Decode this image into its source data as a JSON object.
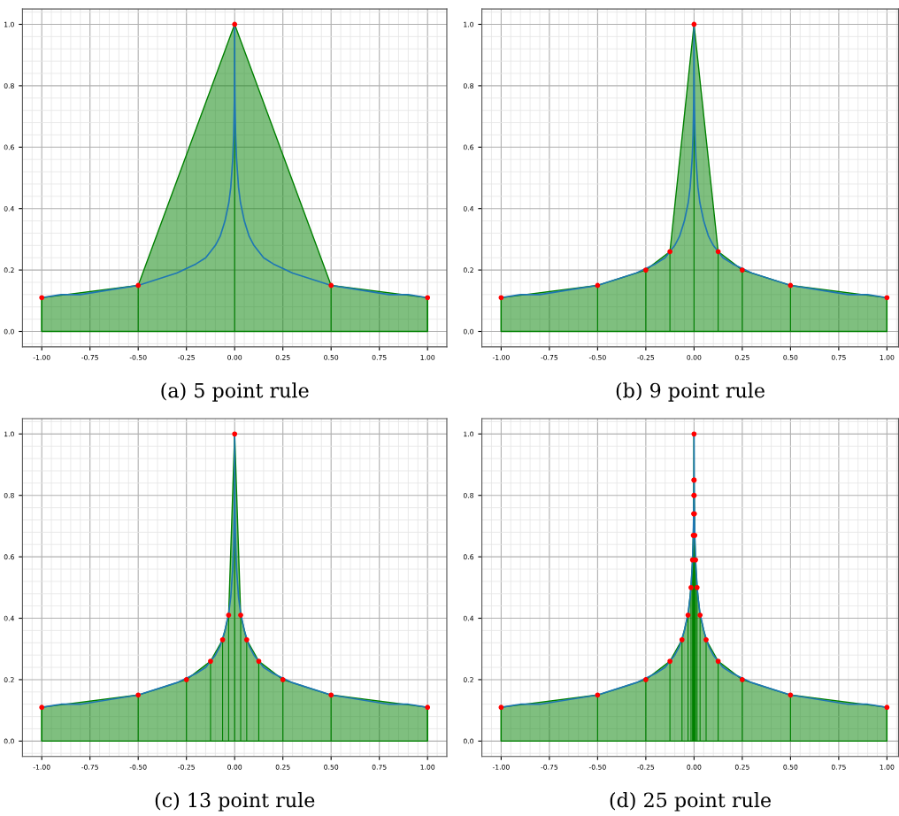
{
  "chart_data": [
    {
      "type": "area",
      "title": "(a) 5 point rule",
      "xlim": [
        -1.1,
        1.1
      ],
      "ylim": [
        -0.05,
        1.05
      ],
      "xticks": [
        {
          "value": -1,
          "label": "-1.00"
        },
        {
          "value": -0.75,
          "label": "-0.75"
        },
        {
          "value": -0.5,
          "label": "-0.50"
        },
        {
          "value": -0.25,
          "label": "-0.25"
        },
        {
          "value": 0,
          "label": "0.00"
        },
        {
          "value": 0.25,
          "label": "0.25"
        },
        {
          "value": 0.5,
          "label": "0.50"
        },
        {
          "value": 0.75,
          "label": "0.75"
        },
        {
          "value": 1,
          "label": "1.00"
        }
      ],
      "yticks": [
        {
          "value": 0,
          "label": "0.0"
        },
        {
          "value": 0.2,
          "label": "0.2"
        },
        {
          "value": 0.4,
          "label": "0.4"
        },
        {
          "value": 0.6,
          "label": "0.6"
        },
        {
          "value": 0.8,
          "label": "0.8"
        },
        {
          "value": 1,
          "label": "1.0"
        }
      ],
      "grid": true,
      "series": [
        {
          "color": "#008000",
          "x": [
            -1,
            -0.5,
            0,
            0.5,
            1
          ],
          "values": [
            0.11,
            0.15,
            1.0,
            0.15,
            0.11
          ]
        },
        {
          "type": "line",
          "color": "#1f77b4",
          "x": [
            -1,
            -0.9,
            -0.8,
            -0.7,
            -0.6,
            -0.5,
            -0.4,
            -0.3,
            -0.2,
            -0.15,
            -0.1,
            -0.075,
            -0.05,
            -0.03,
            -0.02,
            -0.01,
            -0.005,
            -0.002,
            -0.001,
            -0.0005,
            0,
            0.0005,
            0.001,
            0.002,
            0.005,
            0.01,
            0.02,
            0.03,
            0.05,
            0.075,
            0.1,
            0.15,
            0.2,
            0.3,
            0.4,
            0.5,
            0.6,
            0.7,
            0.8,
            0.9,
            1
          ],
          "values": [
            0.11,
            0.12,
            0.12,
            0.13,
            0.14,
            0.15,
            0.17,
            0.19,
            0.22,
            0.24,
            0.28,
            0.31,
            0.36,
            0.42,
            0.47,
            0.56,
            0.64,
            0.74,
            0.8,
            0.85,
            1.0,
            0.85,
            0.8,
            0.74,
            0.64,
            0.56,
            0.47,
            0.42,
            0.36,
            0.31,
            0.28,
            0.24,
            0.22,
            0.19,
            0.17,
            0.15,
            0.14,
            0.13,
            0.12,
            0.12,
            0.11
          ]
        },
        {
          "type": "lollipop",
          "color": "#008000",
          "colors": [
            "#ff0000",
            "#ff0000",
            "#ff0000",
            "#ff0000",
            "#ff0000"
          ],
          "marker": "circle",
          "x": [
            -1,
            -0.5,
            0,
            0.5,
            1
          ],
          "values": [
            0.11,
            0.15,
            1.0,
            0.15,
            0.11
          ]
        }
      ]
    },
    {
      "type": "area",
      "title": "(b) 9 point rule",
      "xlim": [
        -1.1,
        1.06
      ],
      "ylim": [
        -0.05,
        1.05
      ],
      "xticks": [
        {
          "value": -1,
          "label": "-1.00"
        },
        {
          "value": -0.75,
          "label": "-0.75"
        },
        {
          "value": -0.5,
          "label": "-0.50"
        },
        {
          "value": -0.25,
          "label": "-0.25"
        },
        {
          "value": 0,
          "label": "0.00"
        },
        {
          "value": 0.25,
          "label": "0.25"
        },
        {
          "value": 0.5,
          "label": "0.50"
        },
        {
          "value": 0.75,
          "label": "0.75"
        },
        {
          "value": 1,
          "label": "1.00"
        }
      ],
      "yticks": [
        {
          "value": 0,
          "label": "0.0"
        },
        {
          "value": 0.2,
          "label": "0.2"
        },
        {
          "value": 0.4,
          "label": "0.4"
        },
        {
          "value": 0.6,
          "label": "0.6"
        },
        {
          "value": 0.8,
          "label": "0.8"
        },
        {
          "value": 1,
          "label": "1.0"
        }
      ],
      "grid": true,
      "series": [
        {
          "color": "#008000",
          "x": [
            -1,
            -0.5,
            -0.25,
            -0.125,
            0,
            0.125,
            0.25,
            0.5,
            1
          ],
          "values": [
            0.11,
            0.15,
            0.2,
            0.26,
            1.0,
            0.26,
            0.2,
            0.15,
            0.11
          ]
        },
        {
          "type": "line",
          "color": "#1f77b4",
          "x": [
            -1,
            -0.9,
            -0.8,
            -0.7,
            -0.6,
            -0.5,
            -0.4,
            -0.3,
            -0.2,
            -0.15,
            -0.1,
            -0.075,
            -0.05,
            -0.03,
            -0.02,
            -0.01,
            -0.005,
            -0.002,
            -0.001,
            -0.0005,
            0,
            0.0005,
            0.001,
            0.002,
            0.005,
            0.01,
            0.02,
            0.03,
            0.05,
            0.075,
            0.1,
            0.15,
            0.2,
            0.3,
            0.4,
            0.5,
            0.6,
            0.7,
            0.8,
            0.9,
            1
          ],
          "values": [
            0.11,
            0.12,
            0.12,
            0.13,
            0.14,
            0.15,
            0.17,
            0.19,
            0.22,
            0.24,
            0.28,
            0.31,
            0.36,
            0.42,
            0.47,
            0.56,
            0.64,
            0.74,
            0.8,
            0.85,
            1.0,
            0.85,
            0.8,
            0.74,
            0.64,
            0.56,
            0.47,
            0.42,
            0.36,
            0.31,
            0.28,
            0.24,
            0.22,
            0.19,
            0.17,
            0.15,
            0.14,
            0.13,
            0.12,
            0.12,
            0.11
          ]
        },
        {
          "type": "lollipop",
          "color": "#008000",
          "colors": [
            "#ff0000",
            "#ff0000",
            "#ff0000",
            "#ff0000",
            "#ff0000",
            "#ff0000",
            "#ff0000",
            "#ff0000",
            "#ff0000"
          ],
          "marker": "circle",
          "x": [
            -1,
            -0.5,
            -0.25,
            -0.125,
            0,
            0.125,
            0.25,
            0.5,
            1
          ],
          "values": [
            0.11,
            0.15,
            0.2,
            0.26,
            1.0,
            0.26,
            0.2,
            0.15,
            0.11
          ]
        }
      ]
    },
    {
      "type": "area",
      "title": "(c) 13 point rule",
      "xlim": [
        -1.1,
        1.1
      ],
      "ylim": [
        -0.05,
        1.05
      ],
      "xticks": [
        {
          "value": -1,
          "label": "-1.00"
        },
        {
          "value": -0.75,
          "label": "-0.75"
        },
        {
          "value": -0.5,
          "label": "-0.50"
        },
        {
          "value": -0.25,
          "label": "-0.25"
        },
        {
          "value": 0,
          "label": "0.00"
        },
        {
          "value": 0.25,
          "label": "0.25"
        },
        {
          "value": 0.5,
          "label": "0.50"
        },
        {
          "value": 0.75,
          "label": "0.75"
        },
        {
          "value": 1,
          "label": "1.00"
        }
      ],
      "yticks": [
        {
          "value": 0,
          "label": "0.0"
        },
        {
          "value": 0.2,
          "label": "0.2"
        },
        {
          "value": 0.4,
          "label": "0.4"
        },
        {
          "value": 0.6,
          "label": "0.6"
        },
        {
          "value": 0.8,
          "label": "0.8"
        },
        {
          "value": 1,
          "label": "1.0"
        }
      ],
      "grid": true,
      "series": [
        {
          "color": "#008000",
          "x": [
            -1,
            -0.5,
            -0.25,
            -0.125,
            -0.0625,
            -0.03125,
            0,
            0.03125,
            0.0625,
            0.125,
            0.25,
            0.5,
            1
          ],
          "values": [
            0.11,
            0.15,
            0.2,
            0.26,
            0.33,
            0.41,
            1.0,
            0.41,
            0.33,
            0.26,
            0.2,
            0.15,
            0.11
          ]
        },
        {
          "type": "line",
          "color": "#1f77b4",
          "x": [
            -1,
            -0.9,
            -0.8,
            -0.7,
            -0.6,
            -0.5,
            -0.4,
            -0.3,
            -0.2,
            -0.15,
            -0.1,
            -0.075,
            -0.05,
            -0.03,
            -0.02,
            -0.01,
            -0.005,
            -0.002,
            -0.001,
            -0.0005,
            0,
            0.0005,
            0.001,
            0.002,
            0.005,
            0.01,
            0.02,
            0.03,
            0.05,
            0.075,
            0.1,
            0.15,
            0.2,
            0.3,
            0.4,
            0.5,
            0.6,
            0.7,
            0.8,
            0.9,
            1
          ],
          "values": [
            0.11,
            0.12,
            0.12,
            0.13,
            0.14,
            0.15,
            0.17,
            0.19,
            0.22,
            0.24,
            0.28,
            0.31,
            0.36,
            0.42,
            0.47,
            0.56,
            0.64,
            0.74,
            0.8,
            0.85,
            1.0,
            0.85,
            0.8,
            0.74,
            0.64,
            0.56,
            0.47,
            0.42,
            0.36,
            0.31,
            0.28,
            0.24,
            0.22,
            0.19,
            0.17,
            0.15,
            0.14,
            0.13,
            0.12,
            0.12,
            0.11
          ]
        },
        {
          "type": "lollipop",
          "color": "#008000",
          "colors": [
            "#ff0000",
            "#ff0000",
            "#ff0000",
            "#ff0000",
            "#ff0000",
            "#ff0000",
            "#ff0000",
            "#ff0000",
            "#ff0000",
            "#ff0000",
            "#ff0000",
            "#ff0000",
            "#ff0000"
          ],
          "marker": "circle",
          "x": [
            -1,
            -0.5,
            -0.25,
            -0.125,
            -0.0625,
            -0.03125,
            0,
            0.03125,
            0.0625,
            0.125,
            0.25,
            0.5,
            1
          ],
          "values": [
            0.11,
            0.15,
            0.2,
            0.26,
            0.33,
            0.41,
            1.0,
            0.41,
            0.33,
            0.26,
            0.2,
            0.15,
            0.11
          ]
        }
      ]
    },
    {
      "type": "area",
      "title": "(d) 25 point rule",
      "xlim": [
        -1.1,
        1.06
      ],
      "ylim": [
        -0.05,
        1.05
      ],
      "xticks": [
        {
          "value": -1,
          "label": "-1.00"
        },
        {
          "value": -0.75,
          "label": "-0.75"
        },
        {
          "value": -0.5,
          "label": "-0.50"
        },
        {
          "value": -0.25,
          "label": "-0.25"
        },
        {
          "value": 0,
          "label": "0.00"
        },
        {
          "value": 0.25,
          "label": "0.25"
        },
        {
          "value": 0.5,
          "label": "0.50"
        },
        {
          "value": 0.75,
          "label": "0.75"
        },
        {
          "value": 1,
          "label": "1.00"
        }
      ],
      "yticks": [
        {
          "value": 0,
          "label": "0.0"
        },
        {
          "value": 0.2,
          "label": "0.2"
        },
        {
          "value": 0.4,
          "label": "0.4"
        },
        {
          "value": 0.6,
          "label": "0.6"
        },
        {
          "value": 0.8,
          "label": "0.8"
        },
        {
          "value": 1,
          "label": "1.0"
        }
      ],
      "grid": true,
      "series": [
        {
          "color": "#008000",
          "x": [
            -1,
            -0.5,
            -0.25,
            -0.125,
            -0.0625,
            -0.03125,
            -0.015625,
            -0.0078125,
            -0.00390625,
            -0.001953125,
            -0.0009765625,
            -0.00048828125,
            0,
            0.00048828125,
            0.0009765625,
            0.001953125,
            0.00390625,
            0.0078125,
            0.015625,
            0.03125,
            0.0625,
            0.125,
            0.25,
            0.5,
            1
          ],
          "values": [
            0.11,
            0.15,
            0.2,
            0.26,
            0.33,
            0.41,
            0.5,
            0.59,
            0.67,
            0.74,
            0.8,
            0.85,
            1.0,
            0.85,
            0.8,
            0.74,
            0.67,
            0.59,
            0.5,
            0.41,
            0.33,
            0.26,
            0.2,
            0.15,
            0.11
          ]
        },
        {
          "type": "line",
          "color": "#1f77b4",
          "x": [
            -1,
            -0.9,
            -0.8,
            -0.7,
            -0.6,
            -0.5,
            -0.4,
            -0.3,
            -0.2,
            -0.15,
            -0.1,
            -0.075,
            -0.05,
            -0.03,
            -0.02,
            -0.01,
            -0.005,
            -0.002,
            -0.001,
            -0.0005,
            0,
            0.0005,
            0.001,
            0.002,
            0.005,
            0.01,
            0.02,
            0.03,
            0.05,
            0.075,
            0.1,
            0.15,
            0.2,
            0.3,
            0.4,
            0.5,
            0.6,
            0.7,
            0.8,
            0.9,
            1
          ],
          "values": [
            0.11,
            0.12,
            0.12,
            0.13,
            0.14,
            0.15,
            0.17,
            0.19,
            0.22,
            0.24,
            0.28,
            0.31,
            0.36,
            0.42,
            0.47,
            0.56,
            0.64,
            0.74,
            0.8,
            0.85,
            1.0,
            0.85,
            0.8,
            0.74,
            0.64,
            0.56,
            0.47,
            0.42,
            0.36,
            0.31,
            0.28,
            0.24,
            0.22,
            0.19,
            0.17,
            0.15,
            0.14,
            0.13,
            0.12,
            0.12,
            0.11
          ]
        },
        {
          "type": "lollipop",
          "color": "#008000",
          "colors": [
            "#ff0000",
            "#ff0000",
            "#ff0000",
            "#ff0000",
            "#ff0000",
            "#ff0000",
            "#ff0000",
            "#ff0000",
            "#ff0000",
            "#ff0000",
            "#ff0000",
            "#ff0000",
            "#ff0000",
            "#ff0000",
            "#ff0000",
            "#ff0000",
            "#ff0000",
            "#ff0000",
            "#ff0000",
            "#ff0000",
            "#ff0000",
            "#ff0000",
            "#ff0000",
            "#ff0000",
            "#ff0000"
          ],
          "marker": "circle",
          "x": [
            -1,
            -0.5,
            -0.25,
            -0.125,
            -0.0625,
            -0.03125,
            -0.015625,
            -0.0078125,
            -0.00390625,
            -0.001953125,
            -0.0009765625,
            -0.00048828125,
            0,
            0.00048828125,
            0.0009765625,
            0.001953125,
            0.00390625,
            0.0078125,
            0.015625,
            0.03125,
            0.0625,
            0.125,
            0.25,
            0.5,
            1
          ],
          "values": [
            0.11,
            0.15,
            0.2,
            0.26,
            0.33,
            0.41,
            0.5,
            0.59,
            0.67,
            0.74,
            0.8,
            0.85,
            1.0,
            0.85,
            0.8,
            0.74,
            0.67,
            0.59,
            0.5,
            0.41,
            0.33,
            0.26,
            0.2,
            0.15,
            0.11
          ]
        }
      ]
    }
  ]
}
